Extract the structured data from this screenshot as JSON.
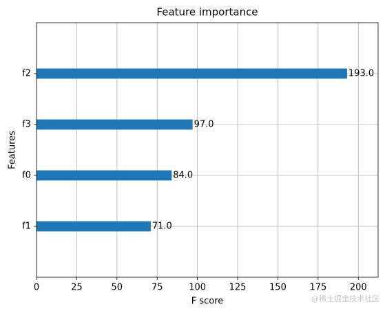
{
  "chart_data": {
    "type": "barh",
    "title": "Feature importance",
    "x_label": "F score",
    "y_label": "Features",
    "categories": [
      "f1",
      "f0",
      "f3",
      "f2"
    ],
    "values": [
      71,
      84,
      97,
      193
    ],
    "value_labels": [
      "71.0",
      "84.0",
      "97.0",
      "193.0"
    ],
    "color": "#1f77b4",
    "xlim": [
      0,
      212.3
    ],
    "xticks": [
      0,
      25,
      50,
      75,
      100,
      125,
      150,
      175,
      200
    ],
    "ylim": [
      -1,
      4
    ],
    "grid": true,
    "watermark": "@稀土掘金技术社区"
  }
}
